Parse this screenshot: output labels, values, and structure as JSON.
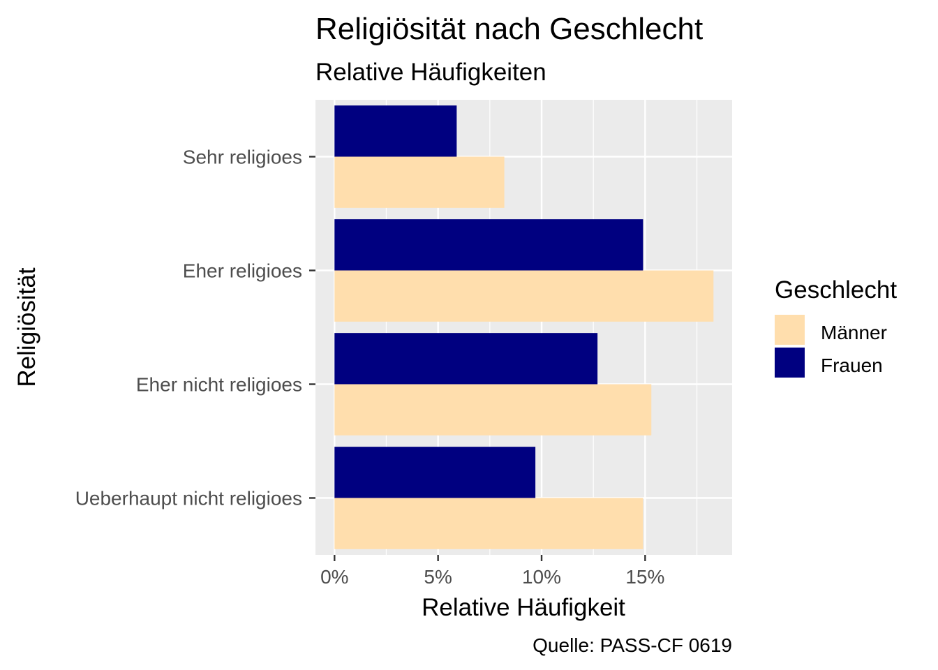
{
  "chart_data": {
    "type": "bar",
    "orientation": "horizontal",
    "title": "Religiösität nach Geschlecht",
    "subtitle": "Relative Häufigkeiten",
    "xlabel": "Relative Häufigkeit",
    "ylabel": "Religiösität",
    "caption": "Quelle: PASS-CF 0619",
    "categories": [
      "Sehr religioes",
      "Eher religioes",
      "Eher nicht religioes",
      "Ueberhaupt nicht religioes"
    ],
    "series": [
      {
        "name": "Frauen",
        "color": "#000080",
        "values": [
          5.9,
          14.9,
          12.7,
          9.7
        ]
      },
      {
        "name": "Männer",
        "color": "#FFDEAD",
        "values": [
          8.2,
          18.3,
          15.3,
          14.9
        ]
      }
    ],
    "x_ticks": [
      0,
      5,
      10,
      15
    ],
    "x_tick_labels": [
      "0%",
      "5%",
      "10%",
      "15%"
    ],
    "xlim": [
      -0.92,
      19.2
    ],
    "legend": {
      "title": "Geschlecht",
      "position": "right",
      "entries": [
        {
          "label": "Männer",
          "color": "#FFDEAD"
        },
        {
          "label": "Frauen",
          "color": "#000080"
        }
      ]
    },
    "panel_background": "#EBEBEB",
    "grid": true
  }
}
